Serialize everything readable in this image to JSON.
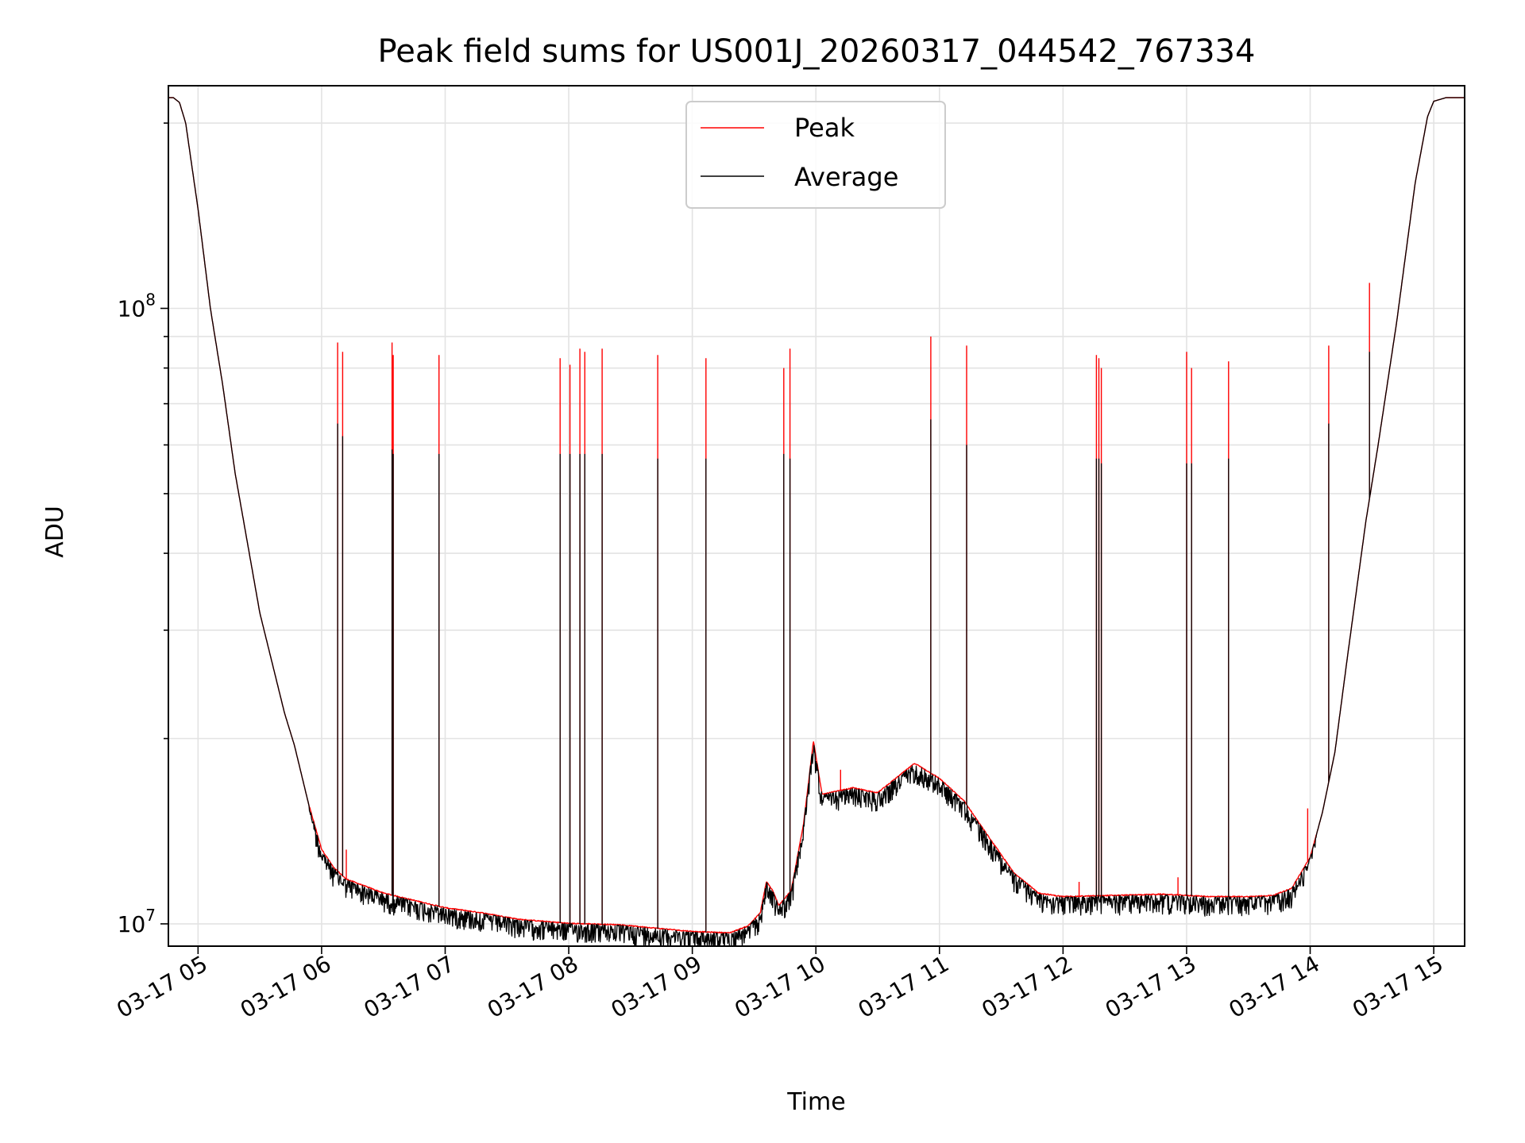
{
  "chart_data": {
    "type": "line",
    "title": "Peak field sums for US001J_20260317_044542_767334",
    "xlabel": "Time",
    "ylabel": "ADU",
    "yscale": "log",
    "ylim": [
      9200000,
      230000000
    ],
    "xlim": [
      4.76,
      15.25
    ],
    "x_ticks": [
      {
        "value": 5,
        "label": "03-17 05"
      },
      {
        "value": 6,
        "label": "03-17 06"
      },
      {
        "value": 7,
        "label": "03-17 07"
      },
      {
        "value": 8,
        "label": "03-17 08"
      },
      {
        "value": 9,
        "label": "03-17 09"
      },
      {
        "value": 10,
        "label": "03-17 10"
      },
      {
        "value": 11,
        "label": "03-17 11"
      },
      {
        "value": 12,
        "label": "03-17 12"
      },
      {
        "value": 13,
        "label": "03-17 13"
      },
      {
        "value": 14,
        "label": "03-17 14"
      },
      {
        "value": 15,
        "label": "03-17 15"
      }
    ],
    "y_major_ticks": [
      {
        "value": 10000000,
        "base": "10",
        "exp": "7"
      },
      {
        "value": 100000000,
        "base": "10",
        "exp": "8"
      }
    ],
    "y_minor_ticks": [
      20000000,
      30000000,
      40000000,
      50000000,
      60000000,
      70000000,
      80000000,
      90000000,
      200000000
    ],
    "grid": true,
    "legend_position": "top-center",
    "colors": {
      "peak": "#ff0000",
      "average": "#000000",
      "grid": "#e3e3e3"
    },
    "baseline": {
      "x": [
        4.76,
        4.8,
        4.85,
        4.9,
        5.0,
        5.1,
        5.2,
        5.3,
        5.5,
        5.7,
        5.78,
        5.9,
        6.0,
        6.1,
        6.2,
        6.5,
        7.0,
        7.3,
        7.6,
        8.0,
        8.4,
        9.0,
        9.3,
        9.45,
        9.55,
        9.6,
        9.65,
        9.7,
        9.8,
        9.9,
        9.98,
        10.05,
        10.3,
        10.5,
        10.8,
        11.0,
        11.2,
        11.4,
        11.6,
        11.8,
        12.0,
        12.4,
        12.8,
        13.2,
        13.5,
        13.7,
        13.85,
        14.0,
        14.1,
        14.2,
        14.3,
        14.45,
        14.55,
        14.7,
        14.85,
        14.95,
        15.0,
        15.1,
        15.25
      ],
      "values": [
        220000000,
        220000000,
        216000000,
        200000000,
        145000000,
        100000000,
        75000000,
        54000000,
        32000000,
        22000000,
        19500000,
        15500000,
        13200000,
        12300000,
        11800000,
        11200000,
        10600000,
        10400000,
        10150000,
        10000000,
        9950000,
        9700000,
        9650000,
        9900000,
        10400000,
        11700000,
        11300000,
        10700000,
        11300000,
        14500000,
        19800000,
        16200000,
        16600000,
        16300000,
        18200000,
        17200000,
        15800000,
        13800000,
        12100000,
        11200000,
        11050000,
        11100000,
        11150000,
        11050000,
        11050000,
        11100000,
        11400000,
        12800000,
        15200000,
        19000000,
        27000000,
        45000000,
        60000000,
        95000000,
        160000000,
        205000000,
        217000000,
        220000000,
        220000000
      ]
    },
    "series": [
      {
        "name": "Peak",
        "color": "#ff0000",
        "spike_times": [
          6.13,
          6.17,
          6.57,
          6.58,
          6.95,
          7.93,
          8.01,
          8.09,
          8.13,
          8.27,
          8.72,
          9.11,
          9.74,
          9.79,
          10.93,
          11.22,
          12.27,
          12.29,
          12.31,
          13.0,
          13.04,
          13.34,
          14.15,
          14.48
        ],
        "spike_values": [
          88000000,
          85000000,
          88000000,
          84000000,
          84000000,
          83000000,
          81000000,
          86000000,
          85000000,
          86000000,
          84000000,
          83000000,
          80000000,
          86000000,
          90000000,
          87000000,
          84000000,
          83000000,
          80000000,
          85000000,
          80000000,
          82000000,
          87000000,
          110000000
        ],
        "small_spike_times": [
          6.2,
          10.2,
          12.13,
          12.93,
          13.98
        ],
        "small_spike_values": [
          13200000,
          17800000,
          11700000,
          11900000,
          15400000
        ]
      },
      {
        "name": "Average",
        "color": "#000000",
        "spike_times": [
          6.13,
          6.17,
          6.57,
          6.58,
          6.95,
          7.93,
          8.01,
          8.09,
          8.13,
          8.27,
          8.72,
          9.11,
          9.74,
          9.79,
          10.93,
          11.22,
          12.27,
          12.29,
          12.31,
          13.0,
          13.04,
          13.34,
          14.15,
          14.48
        ],
        "spike_values": [
          65000000,
          62000000,
          59000000,
          58000000,
          58000000,
          58000000,
          58000000,
          58000000,
          58000000,
          58000000,
          57000000,
          57000000,
          58000000,
          57000000,
          66000000,
          60000000,
          57000000,
          57000000,
          56000000,
          56000000,
          56000000,
          57000000,
          65000000,
          85000000
        ]
      }
    ]
  }
}
